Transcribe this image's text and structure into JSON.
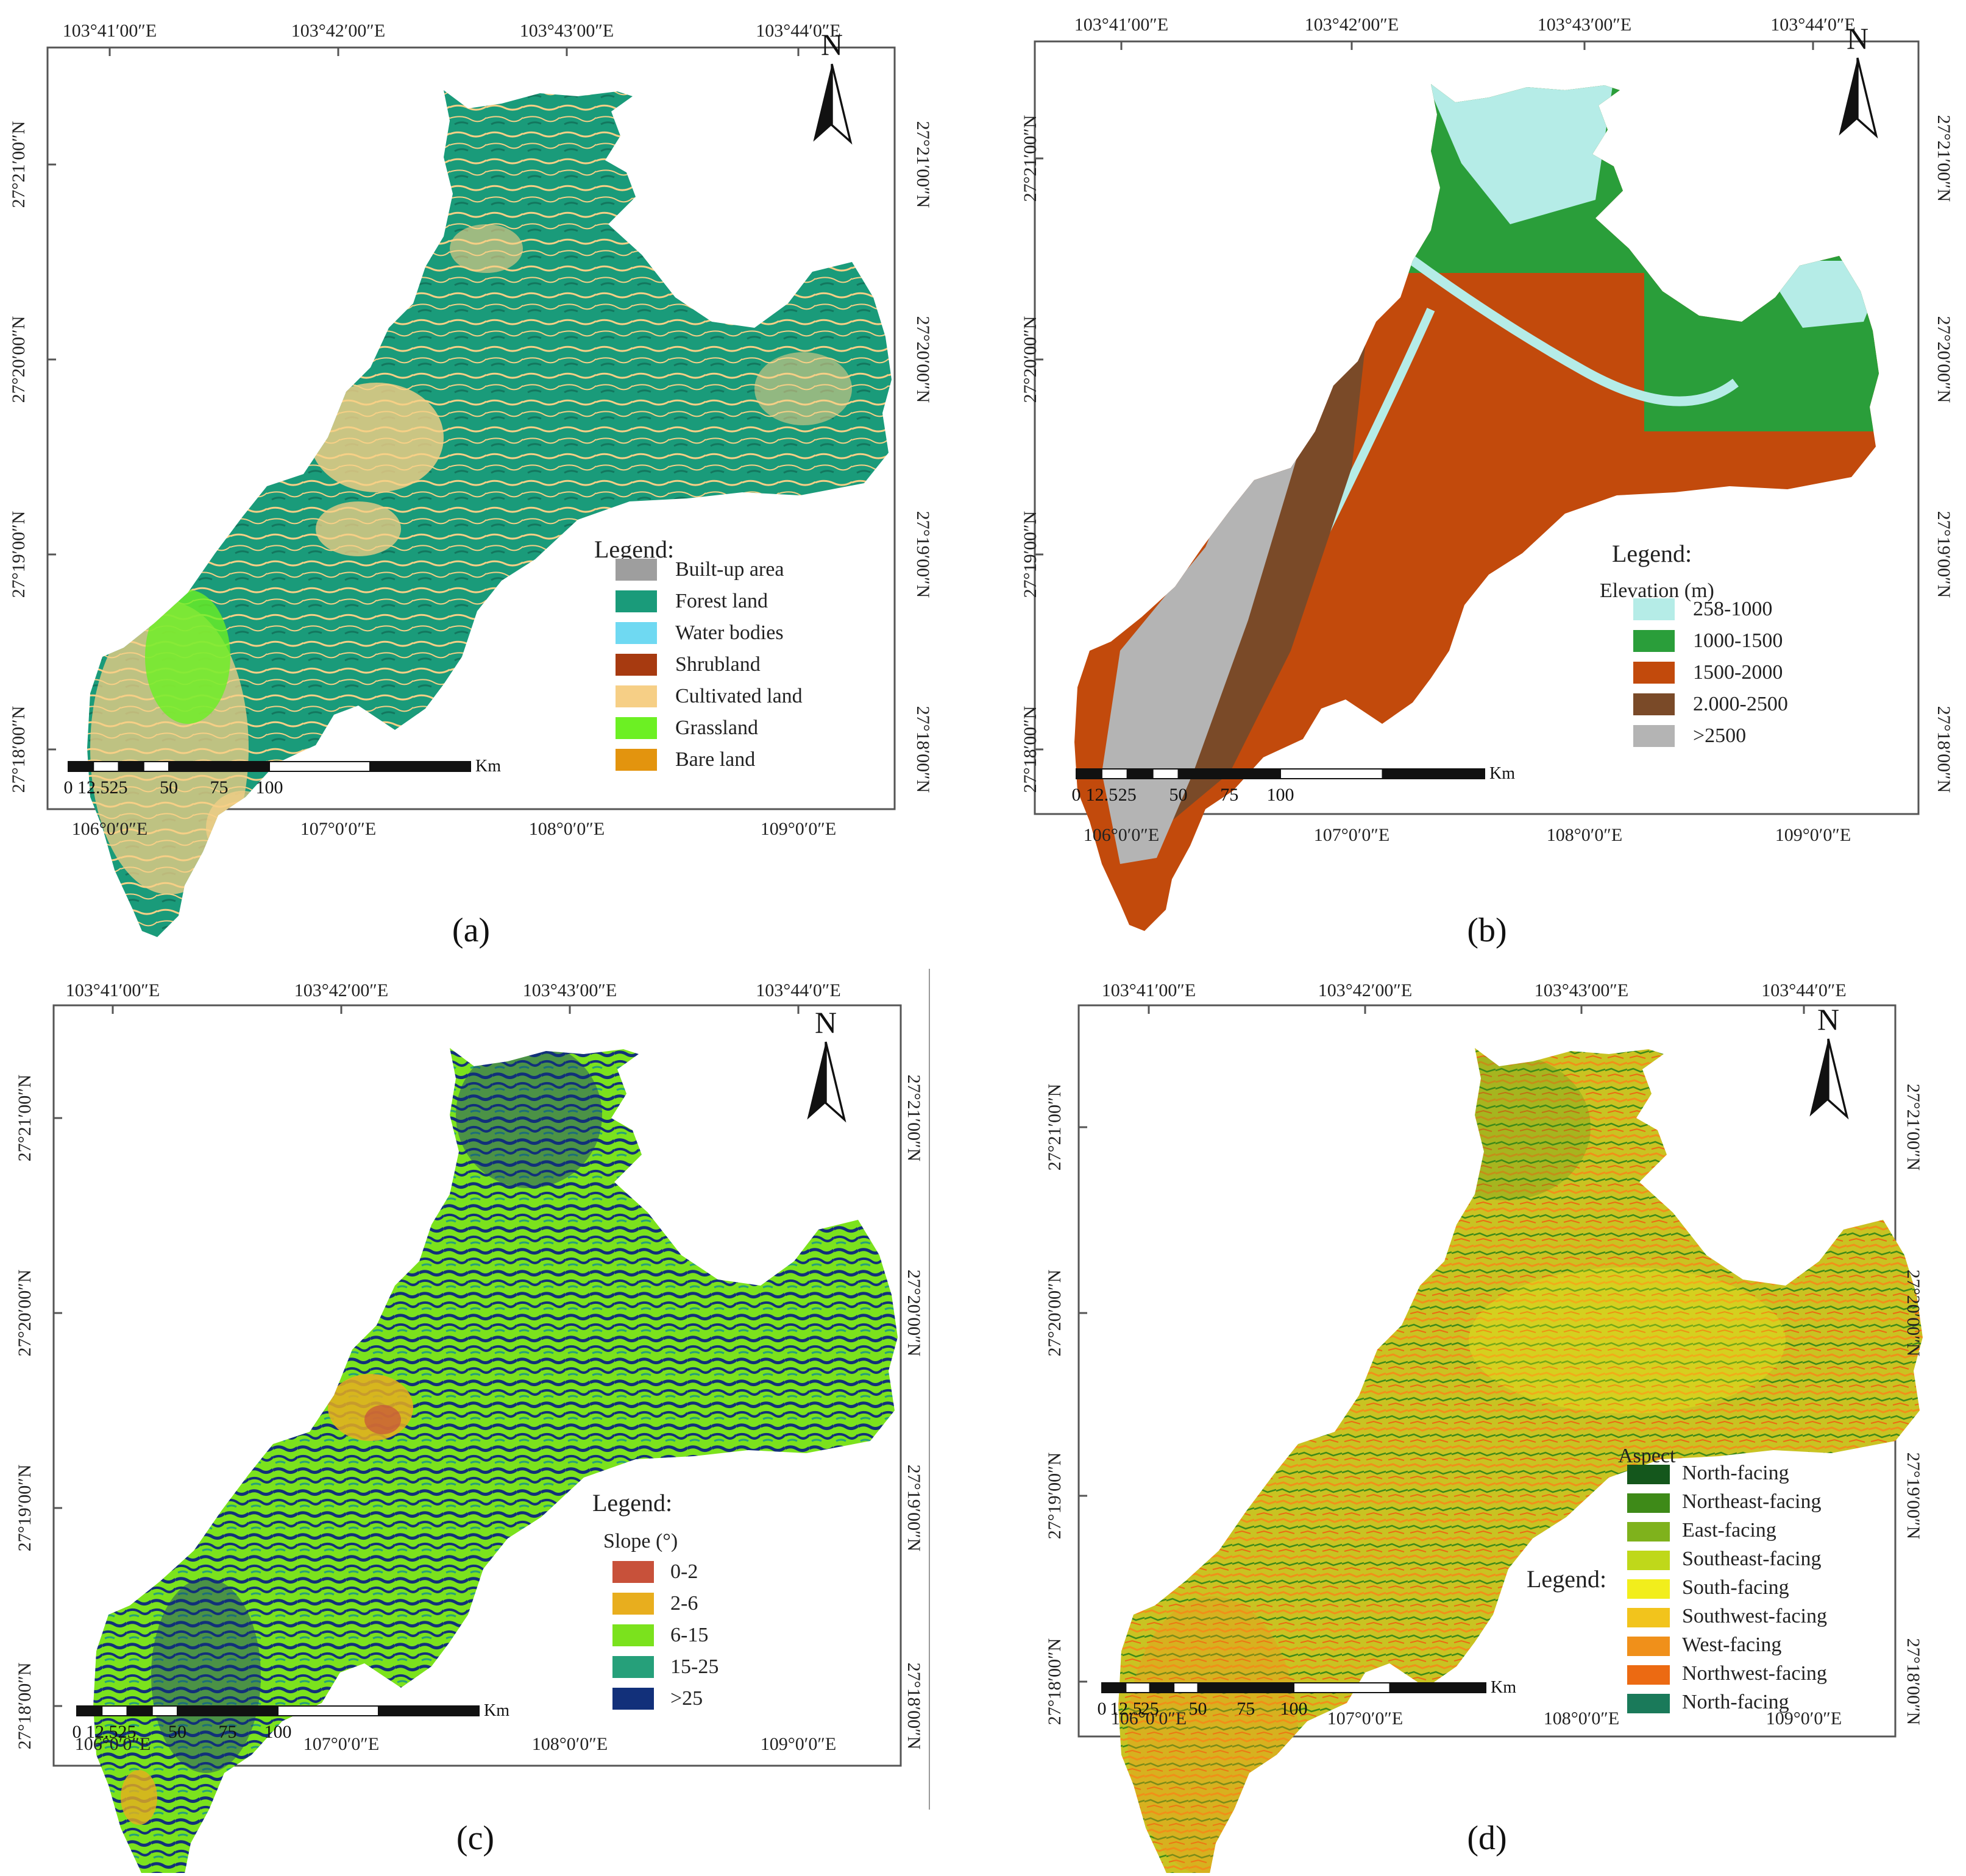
{
  "colors": {
    "frame": "#555555",
    "builtup": "#9e9e9e",
    "forest": "#1a9b7a",
    "water": "#6fd9f2",
    "shrub": "#a73a10",
    "cultivated": "#f6cf86",
    "grassland": "#6cf023",
    "bare": "#e3940e",
    "elev1": "#b5ece7",
    "elev2": "#2a9e3a",
    "elev3": "#c24a0c",
    "elev4": "#7a4a28",
    "elev5": "#b4b4b4",
    "slope1": "#c8513a",
    "slope2": "#e8ae1e",
    "slope3": "#7be21d",
    "slope4": "#26a07a",
    "slope5": "#12307a",
    "asp1": "#14571c",
    "asp2": "#3e8a18",
    "asp3": "#7fb21c",
    "asp4": "#bfd81a",
    "asp5": "#f2ee1c",
    "asp6": "#f2c41c",
    "asp7": "#f0901a",
    "asp8": "#ec6a12",
    "asp9": "#1a7a5a"
  },
  "coords": {
    "top_lon": [
      "103°41′00″E",
      "103°42′00″E",
      "103°43′00″E",
      "103°44′0″E"
    ],
    "bottom_lon": [
      "106°0′0″E",
      "107°0′0″E",
      "108°0′0″E",
      "109°0′0″E"
    ],
    "left_lat": [
      "27°21′00″N",
      "27°20′00″N",
      "27°19′00″N",
      "27°18′00″N"
    ],
    "right_lat": [
      "27°21′00″N",
      "27°20′00″N",
      "27°19′00″N",
      "27°18′00″N"
    ]
  },
  "scale_bar": {
    "ticks": [
      "0",
      "12.5",
      "25",
      "50",
      "75",
      "100"
    ],
    "unit": "Km"
  },
  "north_label": "N",
  "panels": [
    {
      "label": "(a)",
      "legend_title": "Legend:",
      "legend_subtitle": "",
      "legend_items": [
        {
          "label": "Built-up area",
          "color": "#9e9e9e"
        },
        {
          "label": "Forest land",
          "color": "#1a9b7a"
        },
        {
          "label": "Water bodies",
          "color": "#6fd9f2"
        },
        {
          "label": "Shrubland",
          "color": "#a73a10"
        },
        {
          "label": "Cultivated land",
          "color": "#f6cf86"
        },
        {
          "label": "Grassland",
          "color": "#6cf023"
        },
        {
          "label": "Bare land",
          "color": "#e3940e"
        }
      ]
    },
    {
      "label": "(b)",
      "legend_title": "Legend:",
      "legend_subtitle": "Elevation (m)",
      "legend_items": [
        {
          "label": "258-1000",
          "color": "#b5ece7"
        },
        {
          "label": "1000-1500",
          "color": "#2a9e3a"
        },
        {
          "label": "1500-2000",
          "color": "#c24a0c"
        },
        {
          "label": "2.000-2500",
          "color": "#7a4a28"
        },
        {
          "label": ">2500",
          "color": "#b4b4b4"
        }
      ]
    },
    {
      "label": "(c)",
      "legend_title": "Legend:",
      "legend_subtitle": "Slope (°)",
      "legend_items": [
        {
          "label": "0-2",
          "color": "#c8513a"
        },
        {
          "label": "2-6",
          "color": "#e8ae1e"
        },
        {
          "label": "6-15",
          "color": "#7be21d"
        },
        {
          "label": "15-25",
          "color": "#26a07a"
        },
        {
          "label": ">25",
          "color": "#12307a"
        }
      ]
    },
    {
      "label": "(d)",
      "legend_title": "Legend:",
      "legend_subtitle": "Aspect",
      "legend_items": [
        {
          "label": "North-facing",
          "color": "#14571c"
        },
        {
          "label": "Northeast-facing",
          "color": "#3e8a18"
        },
        {
          "label": "East-facing",
          "color": "#7fb21c"
        },
        {
          "label": "Southeast-facing",
          "color": "#bfd81a"
        },
        {
          "label": "South-facing",
          "color": "#f2ee1c"
        },
        {
          "label": "Southwest-facing",
          "color": "#f2c41c"
        },
        {
          "label": "West-facing",
          "color": "#f0901a"
        },
        {
          "label": "Northwest-facing",
          "color": "#ec6a12"
        },
        {
          "label": "North-facing",
          "color": "#1a7a5a"
        }
      ]
    }
  ]
}
